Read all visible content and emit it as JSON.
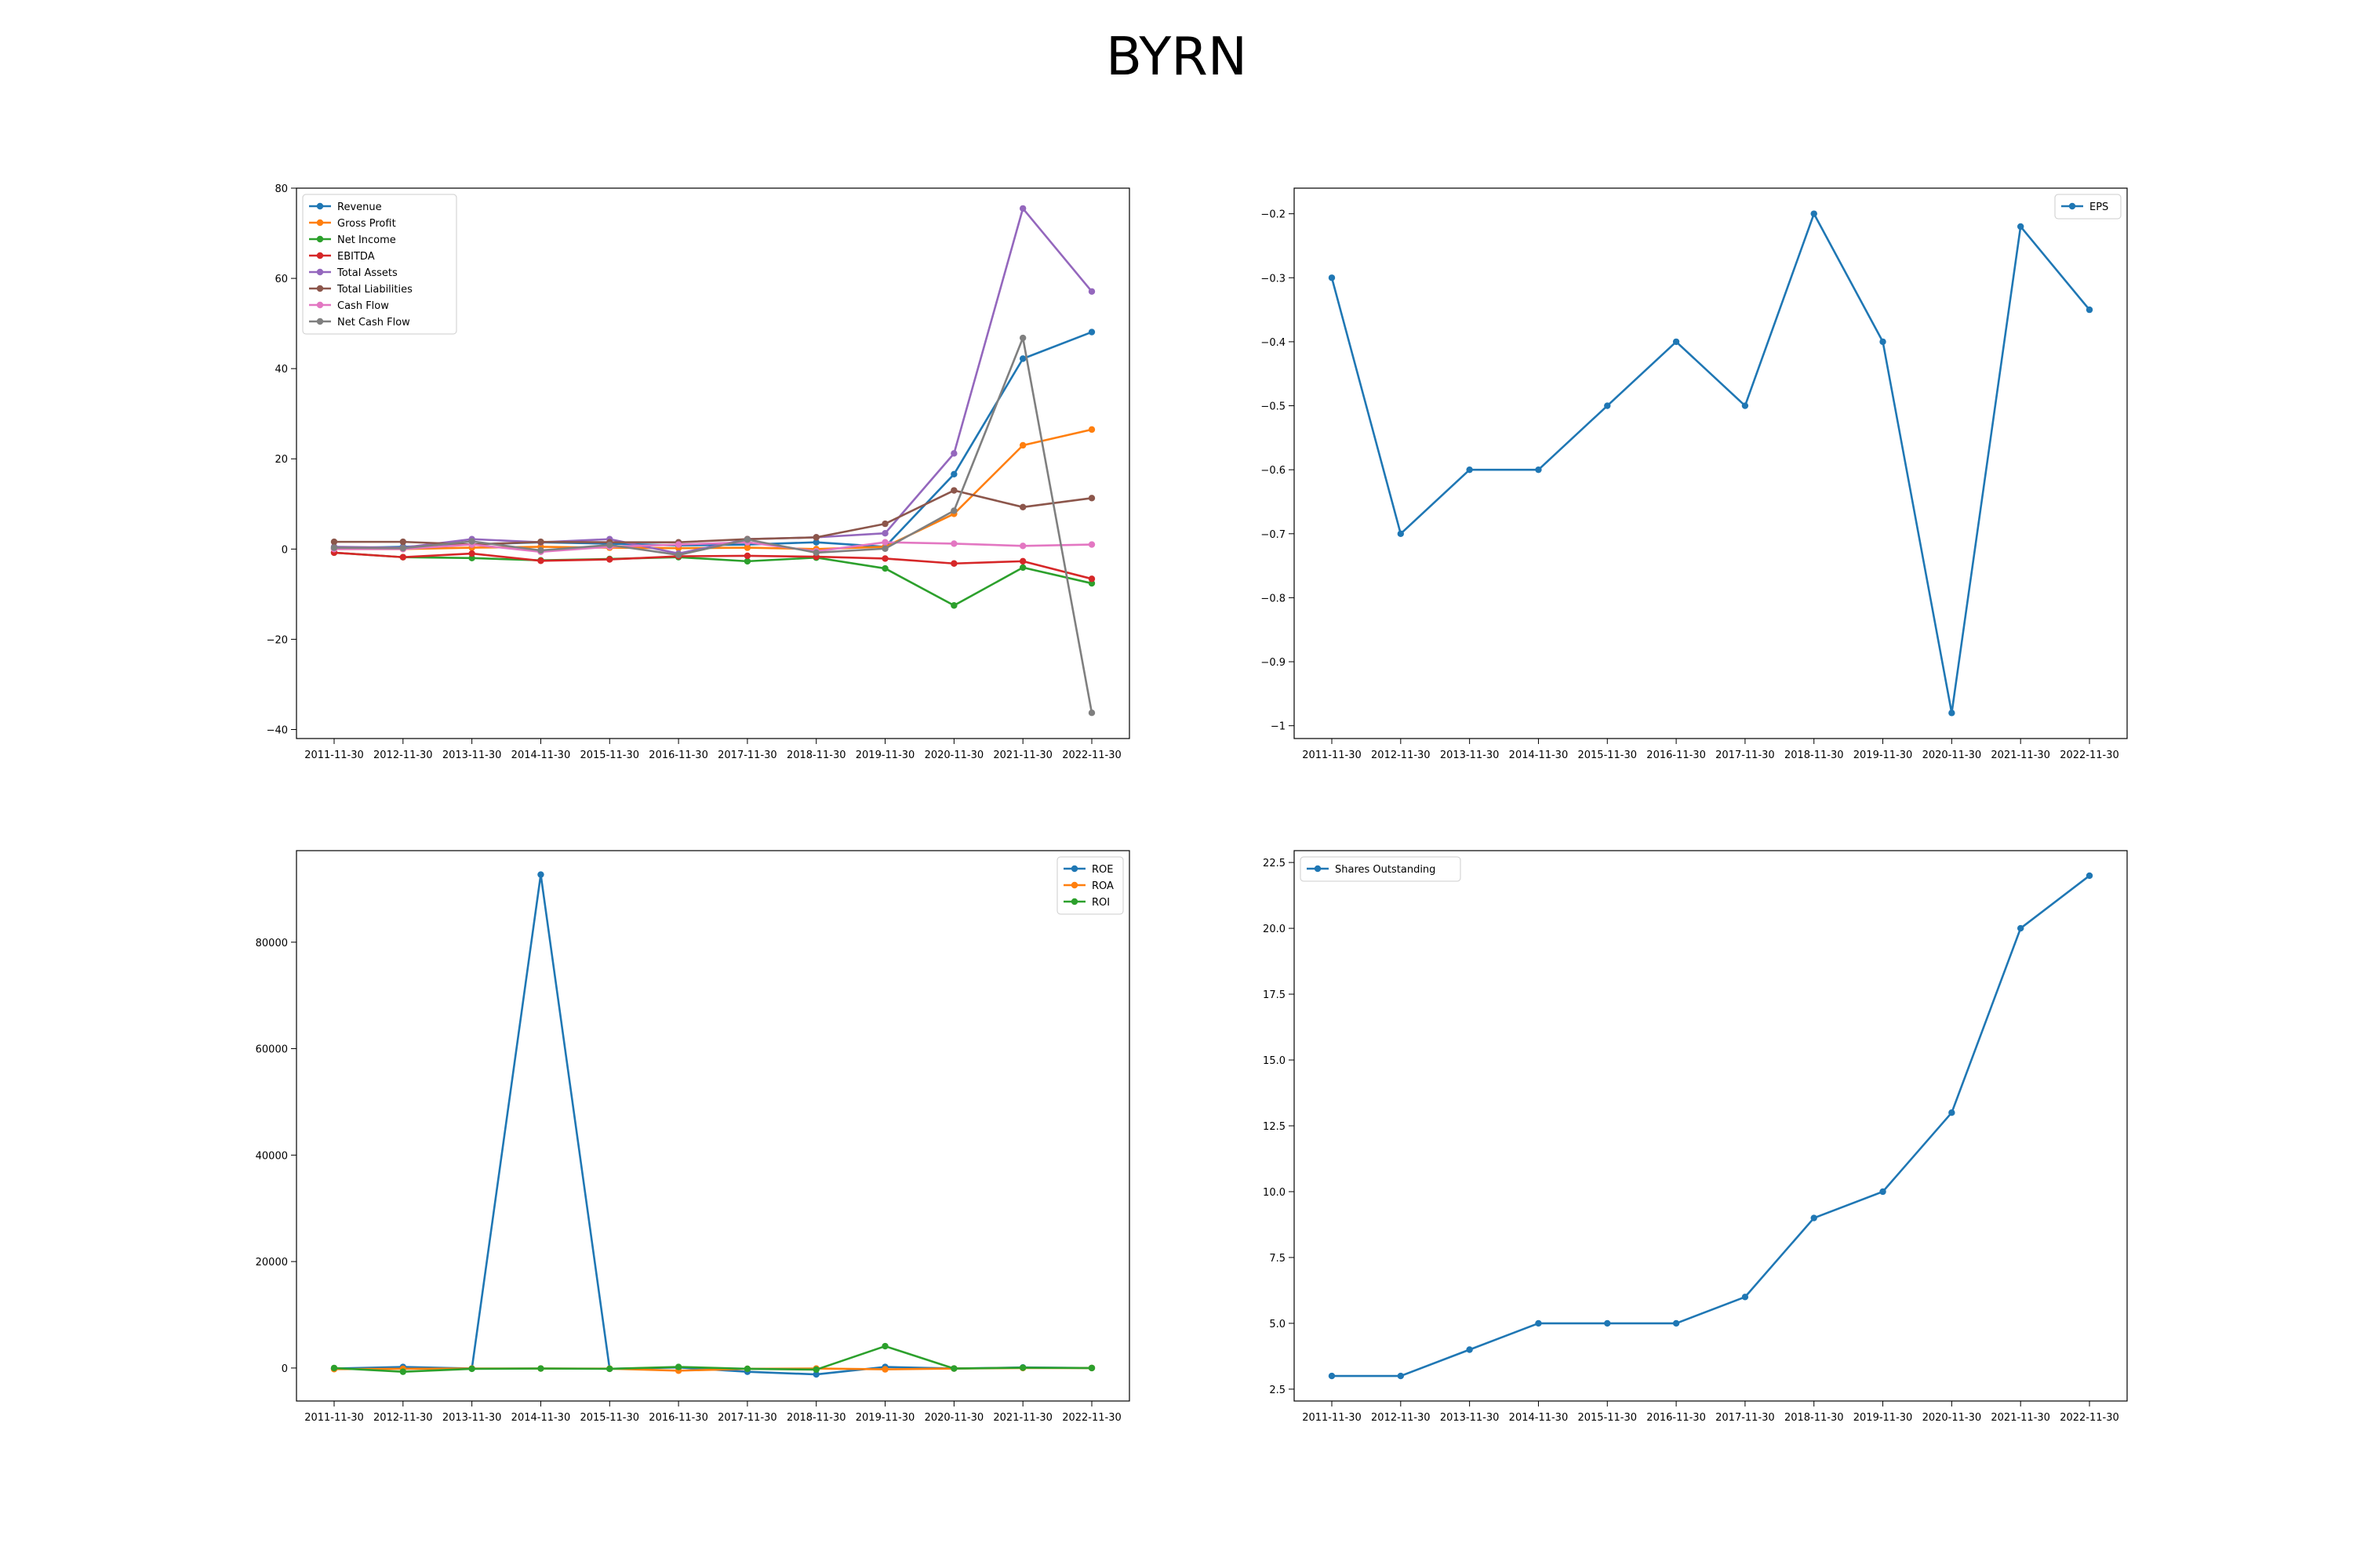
{
  "title": "BYRN",
  "chart_data": [
    {
      "type": "line",
      "categories": [
        "2011-11-30",
        "2012-11-30",
        "2013-11-30",
        "2014-11-30",
        "2015-11-30",
        "2016-11-30",
        "2017-11-30",
        "2018-11-30",
        "2019-11-30",
        "2020-11-30",
        "2021-11-30",
        "2022-11-30"
      ],
      "ylim": [
        -42,
        80
      ],
      "yticks": [
        -40,
        -20,
        0,
        20,
        40,
        60,
        80
      ],
      "legend": "upper left",
      "grid": false,
      "series": [
        {
          "name": "Revenue",
          "color": "#1f77b4",
          "values": [
            0.2,
            0.5,
            1.0,
            1.5,
            1.2,
            0.8,
            1.0,
            1.5,
            0.5,
            16.6,
            42.2,
            48.1
          ]
        },
        {
          "name": "Gross Profit",
          "color": "#ff7f0e",
          "values": [
            0.0,
            0.0,
            0.3,
            0.5,
            0.3,
            0.2,
            0.3,
            0.0,
            0.5,
            7.8,
            23.0,
            26.5
          ]
        },
        {
          "name": "Net Income",
          "color": "#2ca02c",
          "values": [
            -0.8,
            -1.8,
            -2.0,
            -2.5,
            -2.2,
            -1.8,
            -2.7,
            -1.9,
            -4.3,
            -12.5,
            -4.1,
            -7.6
          ]
        },
        {
          "name": "EBITDA",
          "color": "#d62728",
          "values": [
            -0.8,
            -1.8,
            -1.0,
            -2.6,
            -2.3,
            -1.6,
            -1.5,
            -1.7,
            -2.1,
            -3.2,
            -2.7,
            -6.6
          ]
        },
        {
          "name": "Total Assets",
          "color": "#9467bd",
          "values": [
            0.5,
            0.3,
            2.2,
            1.5,
            2.2,
            -1.0,
            2.2,
            2.6,
            3.5,
            21.2,
            75.5,
            57.1
          ]
        },
        {
          "name": "Total Liabilities",
          "color": "#8c564b",
          "values": [
            1.6,
            1.6,
            1.0,
            1.6,
            1.5,
            1.5,
            2.2,
            2.6,
            5.6,
            13.0,
            9.3,
            11.3
          ]
        },
        {
          "name": "Cash Flow",
          "color": "#e377c2",
          "values": [
            0.0,
            0.0,
            1.0,
            -0.6,
            0.5,
            1.0,
            1.5,
            -0.5,
            1.5,
            1.2,
            0.7,
            1.0
          ]
        },
        {
          "name": "Net Cash Flow",
          "color": "#7f7f7f",
          "values": [
            0.3,
            0.2,
            1.7,
            -0.3,
            0.9,
            -1.3,
            2.1,
            -0.8,
            0.1,
            8.5,
            46.8,
            -36.3
          ]
        }
      ]
    },
    {
      "type": "line",
      "categories": [
        "2011-11-30",
        "2012-11-30",
        "2013-11-30",
        "2014-11-30",
        "2015-11-30",
        "2016-11-30",
        "2017-11-30",
        "2018-11-30",
        "2019-11-30",
        "2020-11-30",
        "2021-11-30",
        "2022-11-30"
      ],
      "ylim": [
        -1.02,
        -0.16
      ],
      "yticks": [
        -1.0,
        -0.9,
        -0.8,
        -0.7,
        -0.6,
        -0.5,
        -0.4,
        -0.3,
        -0.2
      ],
      "legend": "upper right",
      "grid": false,
      "series": [
        {
          "name": "EPS",
          "color": "#1f77b4",
          "values": [
            -0.3,
            -0.7,
            -0.6,
            -0.6,
            -0.5,
            -0.4,
            -0.5,
            -0.2,
            -0.4,
            -0.98,
            -0.22,
            -0.35
          ]
        }
      ]
    },
    {
      "type": "line",
      "categories": [
        "2011-11-30",
        "2012-11-30",
        "2013-11-30",
        "2014-11-30",
        "2015-11-30",
        "2016-11-30",
        "2017-11-30",
        "2018-11-30",
        "2019-11-30",
        "2020-11-30",
        "2021-11-30",
        "2022-11-30"
      ],
      "ylim": [
        -6200,
        97200
      ],
      "yticks": [
        0,
        20000,
        40000,
        60000,
        80000
      ],
      "legend": "upper right",
      "grid": false,
      "series": [
        {
          "name": "ROE",
          "color": "#1f77b4",
          "values": [
            -100,
            200,
            -100,
            92700,
            -150,
            100,
            -700,
            -1200,
            200,
            -100,
            100,
            0
          ]
        },
        {
          "name": "ROA",
          "color": "#ff7f0e",
          "values": [
            -200,
            -150,
            -100,
            -100,
            -120,
            -500,
            -150,
            -100,
            -250,
            -100,
            0,
            0
          ]
        },
        {
          "name": "ROI",
          "color": "#2ca02c",
          "values": [
            0,
            -700,
            -150,
            -100,
            -150,
            200,
            -150,
            -300,
            4100,
            -100,
            50,
            0
          ]
        }
      ]
    },
    {
      "type": "line",
      "categories": [
        "2011-11-30",
        "2012-11-30",
        "2013-11-30",
        "2014-11-30",
        "2015-11-30",
        "2016-11-30",
        "2017-11-30",
        "2018-11-30",
        "2019-11-30",
        "2020-11-30",
        "2021-11-30",
        "2022-11-30"
      ],
      "ylim": [
        2.05,
        22.95
      ],
      "yticks": [
        2.5,
        5.0,
        7.5,
        10.0,
        12.5,
        15.0,
        17.5,
        20.0,
        22.5
      ],
      "ytick_labels": [
        "2.5",
        "5.0",
        "7.5",
        "10.0",
        "12.5",
        "15.0",
        "17.5",
        "20.0",
        "22.5"
      ],
      "legend": "upper left",
      "grid": false,
      "series": [
        {
          "name": "Shares Outstanding",
          "color": "#1f77b4",
          "values": [
            3,
            3,
            4,
            5,
            5,
            5,
            6,
            9,
            10,
            13,
            20,
            22
          ]
        }
      ]
    }
  ]
}
